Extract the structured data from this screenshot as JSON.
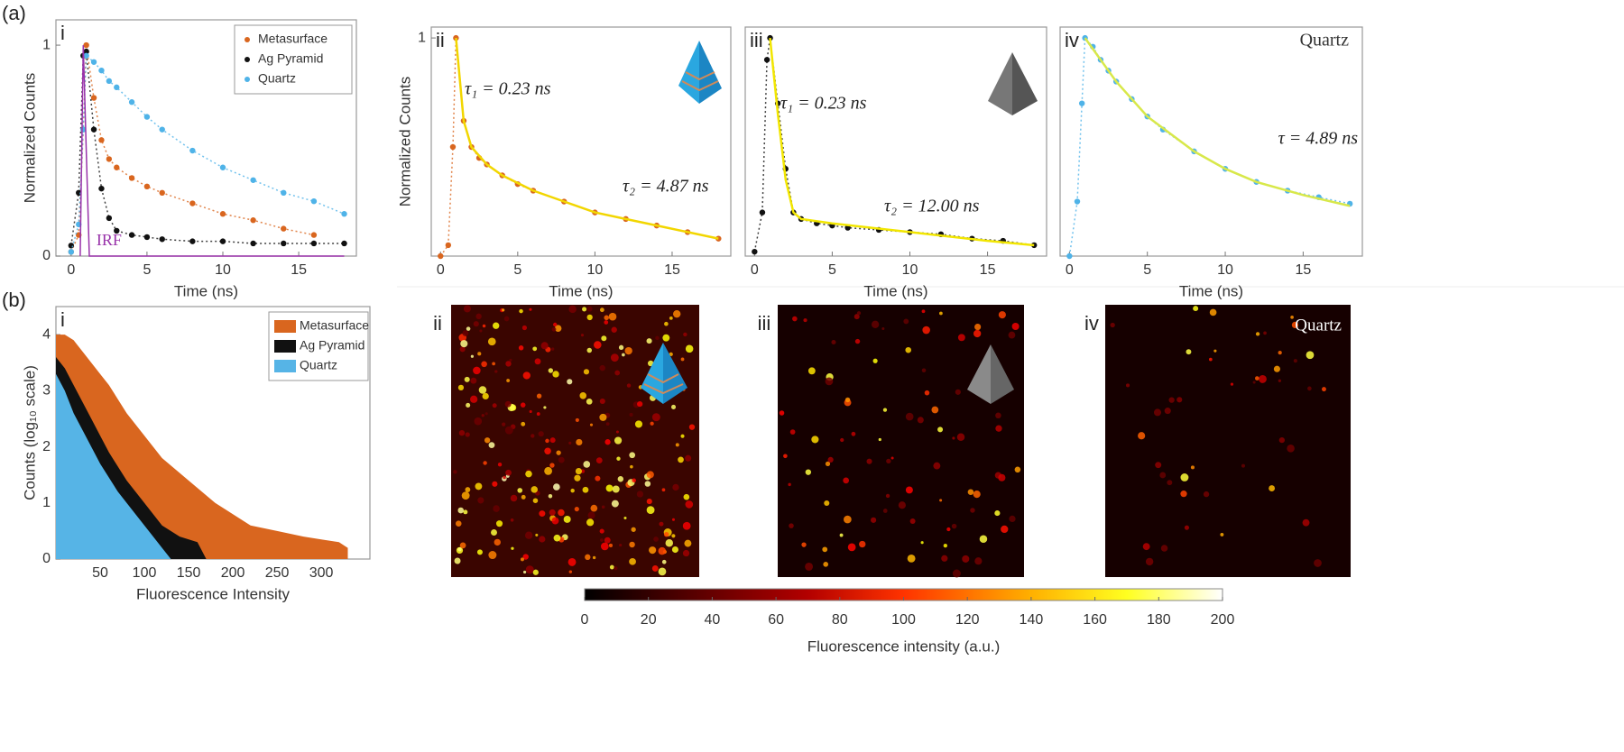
{
  "chart_data": [
    {
      "type": "scatter",
      "label": "(a)",
      "panel": "i",
      "xlabel": "Time (ns)",
      "ylabel": "Normalized Counts",
      "xlim": [
        -1,
        18.8
      ],
      "ylim": [
        0,
        1.12
      ],
      "xticks": [
        0,
        5,
        10,
        15
      ],
      "yticks": [
        0,
        1
      ],
      "legend": "upper right",
      "series": [
        {
          "name": "Metasurface",
          "color": "#d9661f",
          "x": [
            0,
            0.5,
            0.8,
            1,
            1.5,
            2,
            2.5,
            3,
            4,
            5,
            6,
            8,
            10,
            12,
            14,
            16,
            18
          ],
          "values": [
            0.02,
            0.1,
            0.6,
            1.0,
            0.75,
            0.55,
            0.46,
            0.42,
            0.37,
            0.33,
            0.3,
            0.25,
            0.2,
            0.17,
            0.13,
            0.1,
            null
          ]
        },
        {
          "name": "Ag Pyramid",
          "color": "#111111",
          "x": [
            0,
            0.5,
            0.8,
            1,
            1.5,
            2,
            2.5,
            3,
            4,
            5,
            6,
            8,
            10,
            12,
            14,
            16,
            18
          ],
          "values": [
            0.05,
            0.3,
            0.95,
            0.97,
            0.6,
            0.32,
            0.18,
            0.12,
            0.1,
            0.09,
            0.08,
            0.07,
            0.07,
            0.06,
            0.06,
            0.06,
            0.06
          ]
        },
        {
          "name": "Quartz",
          "color": "#4fb3e8",
          "x": [
            0,
            0.5,
            0.8,
            1,
            1.5,
            2,
            2.5,
            3,
            4,
            5,
            6,
            8,
            10,
            12,
            14,
            16,
            18
          ],
          "values": [
            0.02,
            0.15,
            0.6,
            0.95,
            0.92,
            0.88,
            0.83,
            0.8,
            0.73,
            0.66,
            0.6,
            0.5,
            0.42,
            0.36,
            0.3,
            0.26,
            0.2
          ]
        }
      ],
      "irf": {
        "label": "IRF",
        "color": "#9933aa",
        "x": [
          0.6,
          0.8,
          1.0,
          1.2,
          18
        ],
        "values": [
          0,
          1,
          0.5,
          0,
          0
        ]
      }
    },
    {
      "type": "scatter",
      "panel": "ii",
      "xlabel": "Time (ns)",
      "ylabel": "Normalized Counts",
      "xlim": [
        -0.6,
        18.8
      ],
      "ylim": [
        0,
        1.05
      ],
      "xticks": [
        0,
        5,
        10,
        15
      ],
      "yticks": [
        1
      ],
      "series": [
        {
          "color": "#d9661f",
          "style": "markers",
          "x": [
            0,
            0.5,
            0.8,
            1,
            1.5,
            2,
            2.5,
            3,
            4,
            5,
            6,
            8,
            10,
            12,
            14,
            16,
            18
          ],
          "values": [
            0.0,
            0.05,
            0.5,
            1.0,
            0.62,
            0.5,
            0.45,
            0.42,
            0.37,
            0.33,
            0.3,
            0.25,
            0.2,
            0.17,
            0.14,
            0.11,
            0.08
          ]
        },
        {
          "color": "#f2d600",
          "style": "line",
          "x": [
            1,
            1.5,
            2,
            3,
            4,
            6,
            8,
            10,
            12,
            14,
            16,
            18
          ],
          "values": [
            1.0,
            0.62,
            0.5,
            0.42,
            0.37,
            0.3,
            0.25,
            0.2,
            0.17,
            0.14,
            0.11,
            0.08
          ]
        }
      ],
      "annotations": [
        "τ₁ = 0.23 ns",
        "τ₂ = 4.87 ns"
      ]
    },
    {
      "type": "scatter",
      "panel": "iii",
      "xlabel": "Time (ns)",
      "xlim": [
        -0.6,
        18.8
      ],
      "ylim": [
        0,
        1.05
      ],
      "xticks": [
        0,
        5,
        10,
        15
      ],
      "series": [
        {
          "color": "#111111",
          "style": "markers",
          "x": [
            0,
            0.5,
            0.8,
            1,
            1.5,
            2,
            2.5,
            3,
            4,
            5,
            6,
            8,
            10,
            12,
            14,
            16,
            18
          ],
          "values": [
            0.02,
            0.2,
            0.9,
            1.0,
            0.7,
            0.4,
            0.2,
            0.17,
            0.15,
            0.14,
            0.13,
            0.12,
            0.11,
            0.1,
            0.08,
            0.07,
            0.05
          ]
        },
        {
          "color": "#f2e600",
          "style": "line",
          "x": [
            1,
            1.5,
            2,
            2.5,
            3,
            5,
            10,
            15,
            18
          ],
          "values": [
            1.0,
            0.65,
            0.35,
            0.2,
            0.17,
            0.15,
            0.11,
            0.07,
            0.05
          ]
        }
      ],
      "annotations": [
        "τ₁ = 0.23 ns",
        "τ₂ = 12.00 ns"
      ]
    },
    {
      "type": "scatter",
      "panel": "iv",
      "xlabel": "Time (ns)",
      "xlim": [
        -0.6,
        18.8
      ],
      "ylim": [
        0,
        1.05
      ],
      "xticks": [
        0,
        5,
        10,
        15
      ],
      "series": [
        {
          "color": "#4fb3e8",
          "style": "markers",
          "x": [
            0,
            0.5,
            0.8,
            1,
            1.5,
            2,
            2.5,
            3,
            4,
            5,
            6,
            8,
            10,
            12,
            14,
            16,
            18
          ],
          "values": [
            0.0,
            0.25,
            0.7,
            1.0,
            0.96,
            0.9,
            0.85,
            0.8,
            0.72,
            0.64,
            0.58,
            0.48,
            0.4,
            0.34,
            0.3,
            0.27,
            0.24
          ]
        },
        {
          "color": "#d8e84a",
          "style": "line",
          "x": [
            1,
            3,
            5,
            8,
            10,
            12,
            15,
            18
          ],
          "values": [
            1.0,
            0.8,
            0.64,
            0.48,
            0.4,
            0.34,
            0.28,
            0.23
          ]
        }
      ],
      "annotations": [
        "Quartz",
        "τ = 4.89 ns"
      ]
    },
    {
      "type": "area",
      "label": "(b)",
      "panel": "i",
      "xlabel": "Fluorescence Intensity",
      "ylabel": "Counts (log₁₀ scale)",
      "xlim": [
        0,
        355
      ],
      "ylim": [
        0,
        4.5
      ],
      "xticks": [
        50,
        100,
        150,
        200,
        250,
        300
      ],
      "yticks": [
        0,
        1,
        2,
        3,
        4
      ],
      "legend": "upper right",
      "series": [
        {
          "name": "Metasurface",
          "color": "#d9661f",
          "x": [
            0,
            10,
            20,
            30,
            40,
            50,
            60,
            80,
            100,
            120,
            150,
            180,
            200,
            220,
            250,
            280,
            300,
            320,
            330
          ],
          "values": [
            4,
            4,
            3.9,
            3.7,
            3.5,
            3.3,
            3.1,
            2.6,
            2.2,
            1.8,
            1.4,
            1.0,
            0.8,
            0.6,
            0.5,
            0.4,
            0.35,
            0.3,
            0.2
          ]
        },
        {
          "name": "Ag Pyramid",
          "color": "#111111",
          "x": [
            0,
            10,
            20,
            30,
            40,
            50,
            60,
            80,
            100,
            120,
            140,
            160,
            170
          ],
          "values": [
            3.6,
            3.4,
            3.1,
            2.8,
            2.5,
            2.2,
            1.9,
            1.4,
            1.0,
            0.6,
            0.4,
            0.3,
            0
          ]
        },
        {
          "name": "Quartz",
          "color": "#56b4e6",
          "x": [
            0,
            10,
            20,
            30,
            50,
            70,
            90,
            110,
            120,
            130
          ],
          "values": [
            3.3,
            3.0,
            2.6,
            2.3,
            1.7,
            1.2,
            0.8,
            0.4,
            0.2,
            0
          ]
        }
      ]
    },
    {
      "type": "heatmap",
      "panels": [
        {
          "panel": "ii"
        },
        {
          "panel": "iii"
        },
        {
          "panel": "iv",
          "text": "Quartz"
        }
      ],
      "colorbar": {
        "label": "Fluorescence intensity (a.u.)",
        "lim": [
          0,
          200
        ],
        "ticks": [
          0,
          20,
          40,
          60,
          80,
          100,
          120,
          140,
          160,
          180,
          200
        ]
      }
    }
  ]
}
